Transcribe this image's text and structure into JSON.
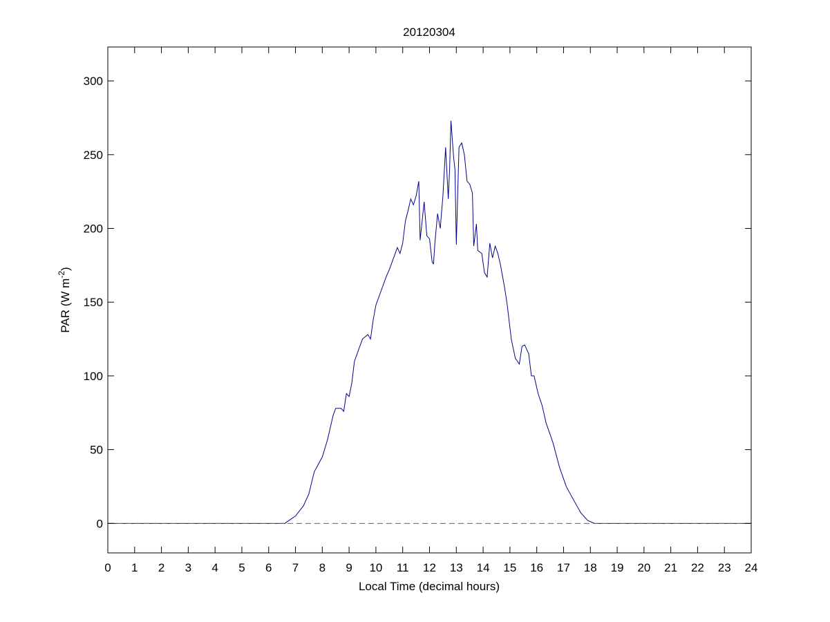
{
  "chart_data": {
    "type": "line",
    "title": "20120304",
    "xlabel": "Local Time (decimal hours)",
    "ylabel": {
      "text": "PAR (W m",
      "sup": "-2",
      "end": ")"
    },
    "xlim": [
      0,
      24
    ],
    "ylim": [
      -20,
      323
    ],
    "xticks": [
      0,
      1,
      2,
      3,
      4,
      5,
      6,
      7,
      8,
      9,
      10,
      11,
      12,
      13,
      14,
      15,
      16,
      17,
      18,
      19,
      20,
      21,
      22,
      23,
      24
    ],
    "yticks": [
      0,
      50,
      100,
      150,
      200,
      250,
      300
    ],
    "grid": false,
    "box": true,
    "series": [
      {
        "color": "#00008b",
        "dash": false,
        "x": [
          0,
          6.6,
          7.0,
          7.3,
          7.5,
          7.7,
          8.0,
          8.2,
          8.4,
          8.5,
          8.7,
          8.8,
          8.9,
          9.0,
          9.1,
          9.2,
          9.3,
          9.5,
          9.7,
          9.8,
          9.9,
          10.0,
          10.2,
          10.4,
          10.5,
          10.7,
          10.8,
          10.9,
          11.0,
          11.1,
          11.2,
          11.3,
          11.4,
          11.5,
          11.6,
          11.65,
          11.8,
          11.9,
          12.0,
          12.1,
          12.15,
          12.2,
          12.3,
          12.4,
          12.5,
          12.6,
          12.7,
          12.75,
          12.8,
          12.9,
          12.95,
          13.0,
          13.1,
          13.2,
          13.3,
          13.4,
          13.5,
          13.6,
          13.65,
          13.75,
          13.8,
          13.95,
          14.05,
          14.15,
          14.25,
          14.35,
          14.45,
          14.55,
          14.65,
          14.8,
          14.9,
          15.05,
          15.2,
          15.35,
          15.45,
          15.55,
          15.7,
          15.8,
          15.9,
          16.05,
          16.2,
          16.35,
          16.6,
          16.85,
          17.1,
          17.4,
          17.65,
          17.9,
          18.15,
          18.3,
          24
        ],
        "values": [
          0,
          0,
          5,
          12,
          20,
          35,
          45,
          57,
          73,
          78,
          78,
          76,
          88,
          86,
          95,
          110,
          115,
          125,
          128,
          125,
          138,
          148,
          158,
          168,
          172,
          182,
          187,
          183,
          190,
          205,
          212,
          220,
          216,
          222,
          232,
          192,
          218,
          195,
          193,
          177,
          176,
          190,
          210,
          200,
          222,
          255,
          220,
          240,
          273,
          248,
          240,
          189,
          255,
          258,
          250,
          232,
          230,
          224,
          188,
          203,
          185,
          183,
          170,
          167,
          190,
          180,
          188,
          183,
          175,
          160,
          148,
          125,
          112,
          108,
          120,
          121,
          115,
          100,
          100,
          88,
          80,
          68,
          55,
          38,
          25,
          15,
          7,
          2,
          0,
          0,
          0
        ]
      },
      {
        "color": "#e0302a",
        "dash": true,
        "x": [
          0,
          24
        ],
        "values": [
          0,
          0
        ]
      }
    ]
  }
}
